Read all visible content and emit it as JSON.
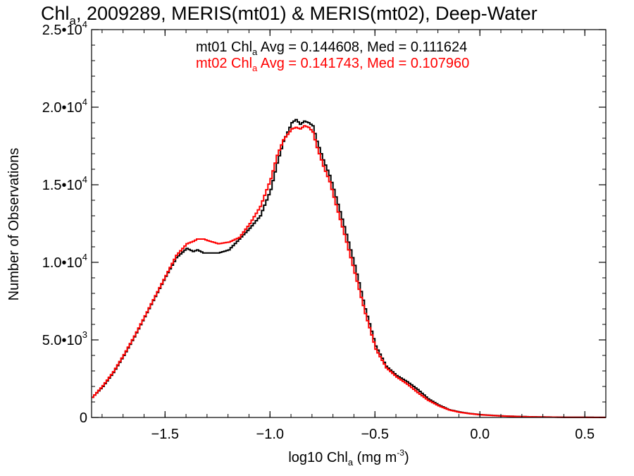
{
  "chart_data": {
    "type": "line",
    "title": {
      "pre": "Chl",
      "sub": "a",
      "post": ", 2009289, MERIS(mt01) & MERIS(mt02), Deep-Water"
    },
    "xlabel": {
      "pre": "log10 Chl",
      "sub": "a",
      "mid": " (mg m",
      "sup": "-3",
      "post": ")"
    },
    "ylabel": "Number of Observations",
    "xlim": [
      -1.85,
      0.6
    ],
    "ylim": [
      0,
      25000
    ],
    "x_ticks": [
      {
        "value": -1.5,
        "label": "-1.5"
      },
      {
        "value": -1.0,
        "label": "-1.0"
      },
      {
        "value": -0.5,
        "label": "-0.5"
      },
      {
        "value": 0.0,
        "label": "0.0"
      },
      {
        "value": 0.5,
        "label": "0.5"
      }
    ],
    "y_ticks": [
      {
        "value": 0,
        "mant": "0",
        "exp": ""
      },
      {
        "value": 5000,
        "mant": "5.0•10",
        "exp": "3"
      },
      {
        "value": 10000,
        "mant": "1.0•10",
        "exp": "4"
      },
      {
        "value": 15000,
        "mant": "1.5•10",
        "exp": "4"
      },
      {
        "value": 20000,
        "mant": "2.0•10",
        "exp": "4"
      },
      {
        "value": 25000,
        "mant": "2.5•10",
        "exp": "4"
      }
    ],
    "annotations": [
      {
        "color": "#000000",
        "pre": "mt01 Chl",
        "sub": "a",
        "post": " Avg = 0.144608, Med = 0.111624"
      },
      {
        "color": "#ff0000",
        "pre": "mt02 Chl",
        "sub": "a",
        "post": " Avg = 0.141743, Med = 0.107960"
      }
    ],
    "series": [
      {
        "color": "#000000",
        "x": [
          -1.85,
          -1.8,
          -1.75,
          -1.7,
          -1.65,
          -1.6,
          -1.55,
          -1.5,
          -1.45,
          -1.4,
          -1.37,
          -1.35,
          -1.32,
          -1.3,
          -1.25,
          -1.2,
          -1.15,
          -1.1,
          -1.05,
          -1.0,
          -0.97,
          -0.94,
          -0.9,
          -0.88,
          -0.86,
          -0.84,
          -0.82,
          -0.8,
          -0.78,
          -0.75,
          -0.72,
          -0.7,
          -0.65,
          -0.6,
          -0.55,
          -0.5,
          -0.45,
          -0.4,
          -0.35,
          -0.3,
          -0.25,
          -0.2,
          -0.15,
          -0.1,
          -0.05,
          0.0,
          0.1,
          0.2,
          0.3,
          0.4,
          0.5,
          0.6
        ],
        "y": [
          1300,
          2000,
          2900,
          4000,
          5200,
          6500,
          7800,
          9100,
          10300,
          10900,
          10700,
          10800,
          10600,
          10600,
          10600,
          10800,
          11500,
          12200,
          13000,
          14700,
          16400,
          17800,
          19000,
          19200,
          18900,
          19100,
          19000,
          18800,
          17800,
          16600,
          15600,
          14700,
          12300,
          9800,
          7000,
          4600,
          3300,
          2700,
          2300,
          1800,
          1200,
          800,
          500,
          350,
          250,
          180,
          100,
          55,
          30,
          15,
          8,
          5
        ]
      },
      {
        "color": "#ff0000",
        "x": [
          -1.85,
          -1.8,
          -1.75,
          -1.7,
          -1.65,
          -1.6,
          -1.55,
          -1.5,
          -1.45,
          -1.4,
          -1.37,
          -1.35,
          -1.32,
          -1.3,
          -1.25,
          -1.2,
          -1.15,
          -1.1,
          -1.05,
          -1.0,
          -0.97,
          -0.94,
          -0.9,
          -0.88,
          -0.86,
          -0.84,
          -0.82,
          -0.8,
          -0.78,
          -0.75,
          -0.72,
          -0.7,
          -0.65,
          -0.6,
          -0.55,
          -0.5,
          -0.45,
          -0.4,
          -0.35,
          -0.3,
          -0.25,
          -0.2,
          -0.15,
          -0.1,
          -0.05,
          0.0,
          0.1,
          0.2,
          0.3,
          0.4,
          0.5,
          0.6
        ],
        "y": [
          1300,
          2050,
          2950,
          4050,
          5250,
          6550,
          7850,
          9150,
          10450,
          11200,
          11350,
          11500,
          11500,
          11400,
          11200,
          11300,
          11600,
          12500,
          13600,
          15400,
          16900,
          17900,
          18600,
          18700,
          18600,
          18800,
          18700,
          18400,
          17400,
          16200,
          15200,
          14200,
          11800,
          9300,
          6700,
          4400,
          3200,
          2600,
          2150,
          1600,
          1100,
          750,
          480,
          330,
          240,
          170,
          95,
          50,
          28,
          14,
          7,
          4
        ]
      }
    ]
  }
}
